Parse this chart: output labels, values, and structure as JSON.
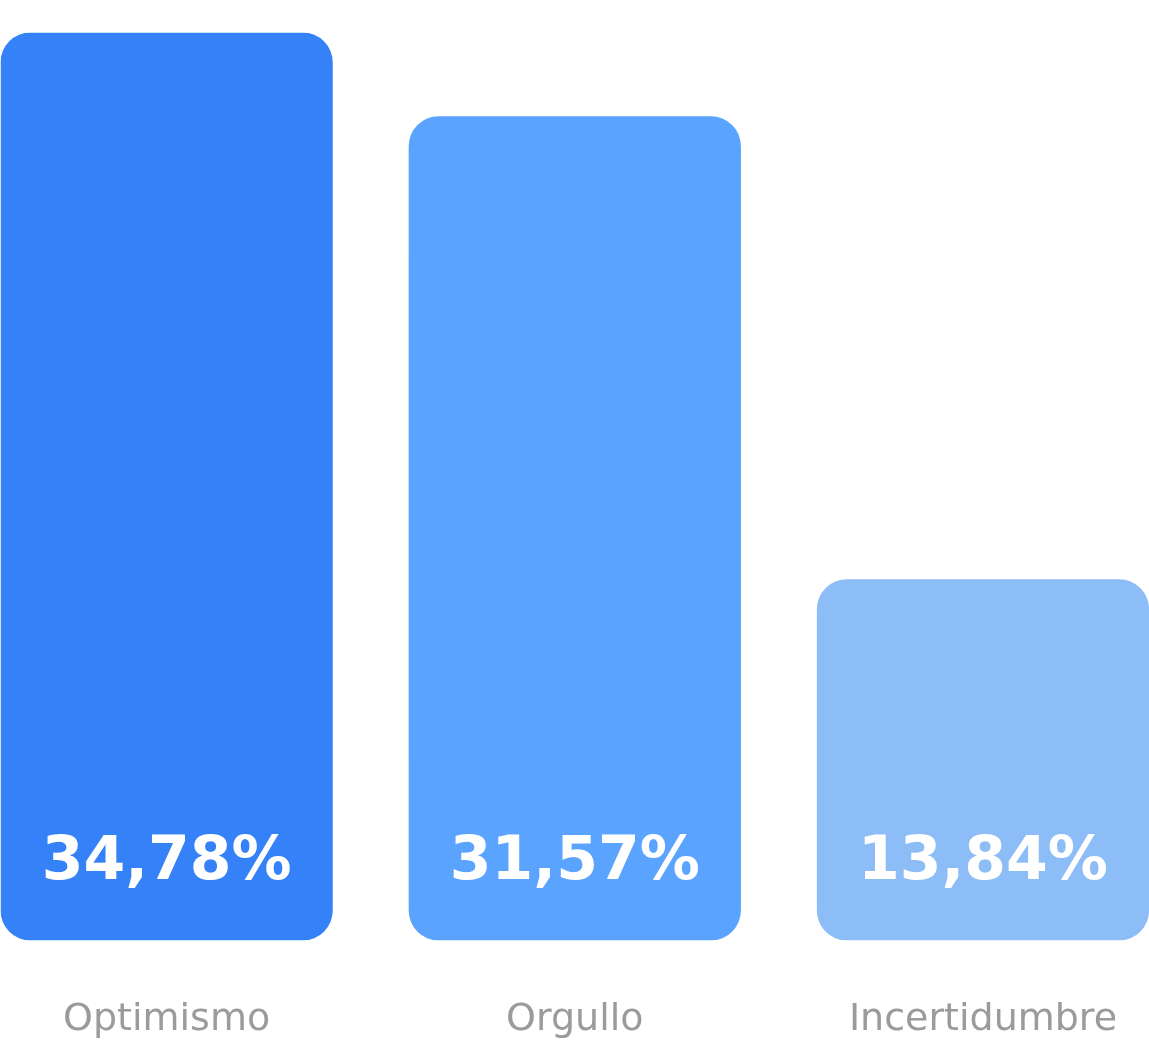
{
  "chart_data": {
    "type": "bar",
    "categories": [
      "Optimismo",
      "Orgullo",
      "Incertidumbre"
    ],
    "values": [
      34.78,
      31.57,
      13.84
    ],
    "colors": [
      "#3581f7",
      "#5aa3fe",
      "#8dbdf7"
    ],
    "value_labels": [
      "34,78%",
      "31,57%",
      "13,84%"
    ]
  }
}
